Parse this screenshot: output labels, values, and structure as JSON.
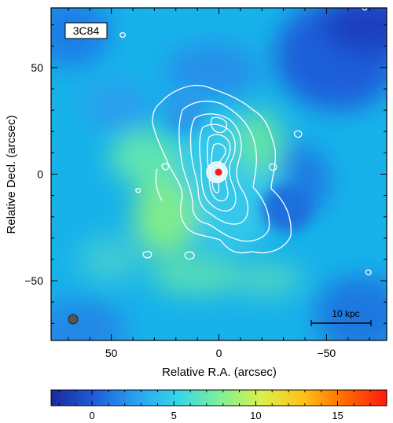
{
  "chart_data": {
    "type": "heatmap",
    "panel_label": "3C84",
    "xlabel": "Relative R.A. (arcsec)",
    "ylabel": "Relative Decl. (arcsec)",
    "xlim": [
      78,
      -78
    ],
    "ylim": [
      -78,
      78
    ],
    "x_ticks": [
      50,
      0,
      -50
    ],
    "x_tick_labels": [
      "50",
      "0",
      "−50"
    ],
    "y_ticks": [
      50,
      0,
      -50
    ],
    "y_tick_labels": [
      "50",
      "0",
      "−50"
    ],
    "scale_bar_label": "10 kpc",
    "colorbar": {
      "range": [
        -2.5,
        18
      ],
      "ticks": [
        0,
        5,
        10,
        15
      ],
      "tick_labels": [
        "0",
        "5",
        "10",
        "15"
      ],
      "colormap": [
        "#1a2a9a",
        "#1f5bd8",
        "#2aa0f0",
        "#33d6e8",
        "#7ef09a",
        "#d9f04a",
        "#ffc21a",
        "#ff6a00",
        "#ff1a10"
      ]
    },
    "colors": {
      "background": "#17b2ea",
      "contour": "#ffffff",
      "core_marker": "#ff1a1a",
      "beam": "#555555"
    }
  }
}
